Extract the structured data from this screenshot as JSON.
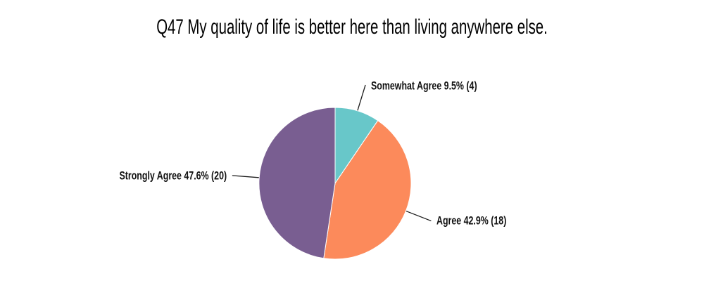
{
  "chart_data": {
    "type": "pie",
    "title": "Q47 My quality of life is better here than living anywhere else.",
    "categories": [
      "Somewhat Agree",
      "Agree",
      "Strongly Agree"
    ],
    "values": [
      9.5,
      42.9,
      47.6
    ],
    "counts": [
      4,
      18,
      20
    ],
    "slices": [
      {
        "label": "Somewhat Agree",
        "percent": 9.5,
        "count": 4,
        "display": "Somewhat Agree 9.5% (4)",
        "color": "#68C7C9"
      },
      {
        "label": "Agree",
        "percent": 42.9,
        "count": 18,
        "display": "Agree 42.9% (18)",
        "color": "#FC8A5B"
      },
      {
        "label": "Strongly Agree",
        "percent": 47.6,
        "count": 20,
        "display": "Strongly Agree 47.6% (20)",
        "color": "#795E91"
      }
    ],
    "start_angle_deg": 0,
    "direction": "clockwise",
    "labels_position": "outside-callout",
    "leader_line_color": "#1a1a1a",
    "slice_border_color": "#ffffff",
    "background_color": "#ffffff",
    "legend": "none"
  }
}
